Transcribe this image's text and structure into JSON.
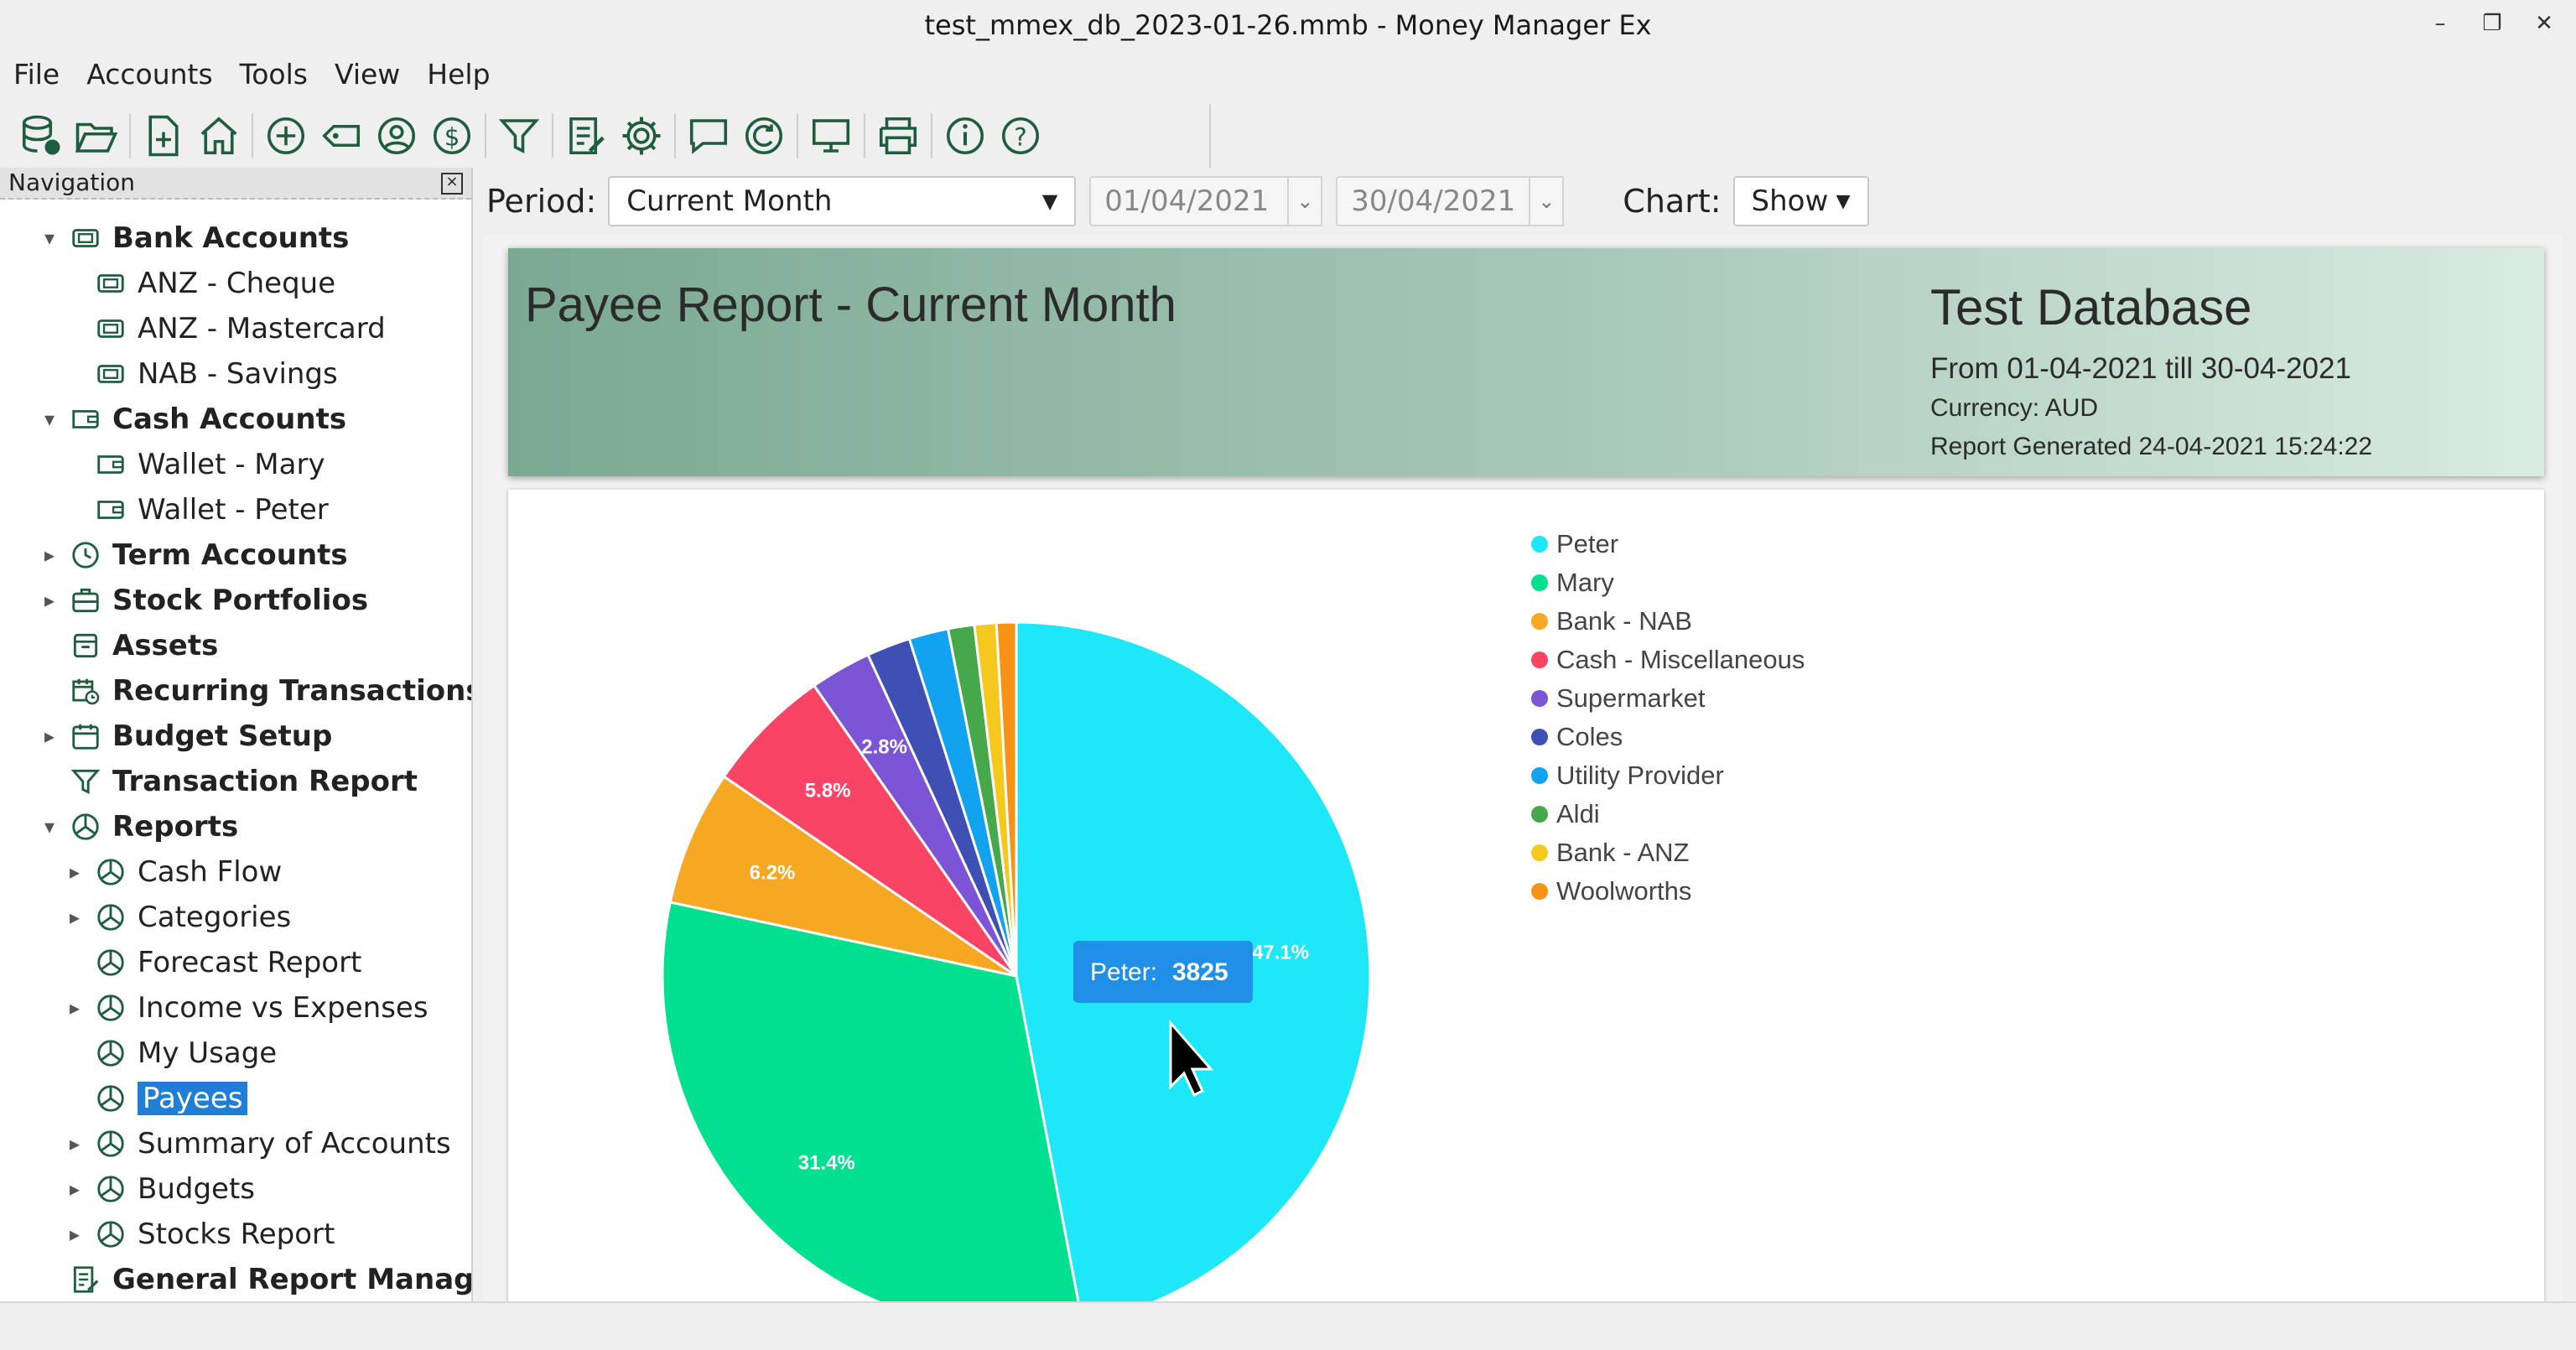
{
  "window": {
    "title": "test_mmex_db_2023-01-26.mmb - Money Manager Ex"
  },
  "menu": [
    "File",
    "Accounts",
    "Tools",
    "View",
    "Help"
  ],
  "navigation": {
    "header": "Navigation",
    "items": [
      {
        "label": "Bank Accounts",
        "level": 0,
        "bold": true,
        "arrow": "▾",
        "icon": "bank-icon"
      },
      {
        "label": "ANZ - Cheque",
        "level": 1,
        "bold": false,
        "arrow": "",
        "icon": "bank-icon"
      },
      {
        "label": "ANZ - Mastercard",
        "level": 1,
        "bold": false,
        "arrow": "",
        "icon": "bank-icon"
      },
      {
        "label": "NAB - Savings",
        "level": 1,
        "bold": false,
        "arrow": "",
        "icon": "bank-icon"
      },
      {
        "label": "Cash Accounts",
        "level": 0,
        "bold": true,
        "arrow": "▾",
        "icon": "wallet-icon"
      },
      {
        "label": "Wallet - Mary",
        "level": 1,
        "bold": false,
        "arrow": "",
        "icon": "wallet-icon"
      },
      {
        "label": "Wallet - Peter",
        "level": 1,
        "bold": false,
        "arrow": "",
        "icon": "wallet-icon"
      },
      {
        "label": "Term Accounts",
        "level": 0,
        "bold": true,
        "arrow": "▸",
        "icon": "clock-icon"
      },
      {
        "label": "Stock Portfolios",
        "level": 0,
        "bold": true,
        "arrow": "▸",
        "icon": "briefcase-icon"
      },
      {
        "label": "Assets",
        "level": 0,
        "bold": true,
        "arrow": "",
        "icon": "box-icon"
      },
      {
        "label": "Recurring Transactions",
        "level": 0,
        "bold": true,
        "arrow": "",
        "icon": "calendar-clock-icon"
      },
      {
        "label": "Budget Setup",
        "level": 0,
        "bold": true,
        "arrow": "▸",
        "icon": "calendar-icon"
      },
      {
        "label": "Transaction Report",
        "level": 0,
        "bold": true,
        "arrow": "",
        "icon": "filter-icon"
      },
      {
        "label": "Reports",
        "level": 0,
        "bold": true,
        "arrow": "▾",
        "icon": "pie-icon"
      },
      {
        "label": "Cash Flow",
        "level": 1,
        "bold": false,
        "arrow": "▸",
        "icon": "pie-icon"
      },
      {
        "label": "Categories",
        "level": 1,
        "bold": false,
        "arrow": "▸",
        "icon": "pie-icon"
      },
      {
        "label": "Forecast Report",
        "level": 1,
        "bold": false,
        "arrow": "",
        "icon": "pie-icon"
      },
      {
        "label": "Income vs Expenses",
        "level": 1,
        "bold": false,
        "arrow": "▸",
        "icon": "pie-icon"
      },
      {
        "label": "My Usage",
        "level": 1,
        "bold": false,
        "arrow": "",
        "icon": "pie-icon"
      },
      {
        "label": "Payees",
        "level": 1,
        "bold": false,
        "arrow": "",
        "icon": "pie-icon",
        "selected": true
      },
      {
        "label": "Summary of Accounts",
        "level": 1,
        "bold": false,
        "arrow": "▸",
        "icon": "pie-icon"
      },
      {
        "label": "Budgets",
        "level": 1,
        "bold": false,
        "arrow": "▸",
        "icon": "pie-icon"
      },
      {
        "label": "Stocks Report",
        "level": 1,
        "bold": false,
        "arrow": "▸",
        "icon": "pie-icon"
      },
      {
        "label": "General Report Manager",
        "level": 0,
        "bold": true,
        "arrow": "",
        "icon": "report-edit-icon"
      }
    ]
  },
  "controls": {
    "period_label": "Period:",
    "period_value": "Current Month",
    "date_from": "01/04/2021",
    "date_to": "30/04/2021",
    "chart_label": "Chart:",
    "chart_value": "Show"
  },
  "report": {
    "title": "Payee Report - Current Month",
    "database": "Test Database",
    "range": "From 01-04-2021 till 30-04-2021",
    "currency": "Currency: AUD",
    "generated": "Report Generated 24-04-2021 15:24:22"
  },
  "tooltip": {
    "label": "Peter:",
    "value": "3825"
  },
  "chart_data": {
    "type": "pie",
    "categories": [
      "Peter",
      "Mary",
      "Bank - NAB",
      "Cash - Miscellaneous",
      "Supermarket",
      "Coles",
      "Utility Provider",
      "Aldi",
      "Bank - ANZ",
      "Woolworths"
    ],
    "values": [
      47.1,
      31.4,
      6.2,
      5.8,
      2.8,
      2.0,
      1.8,
      1.2,
      1.0,
      0.9
    ],
    "colors": [
      "#1ee8f8",
      "#00e08f",
      "#f7a823",
      "#fa4466",
      "#7c54d6",
      "#3f50b5",
      "#12a3f0",
      "#47a84b",
      "#f5c81e",
      "#f89214"
    ],
    "data_labels": [
      "47.1%",
      "31.4%",
      "6.2%",
      "5.8%",
      "2.8%",
      "",
      "",
      "",
      "",
      ""
    ],
    "legend_placement": "right"
  }
}
